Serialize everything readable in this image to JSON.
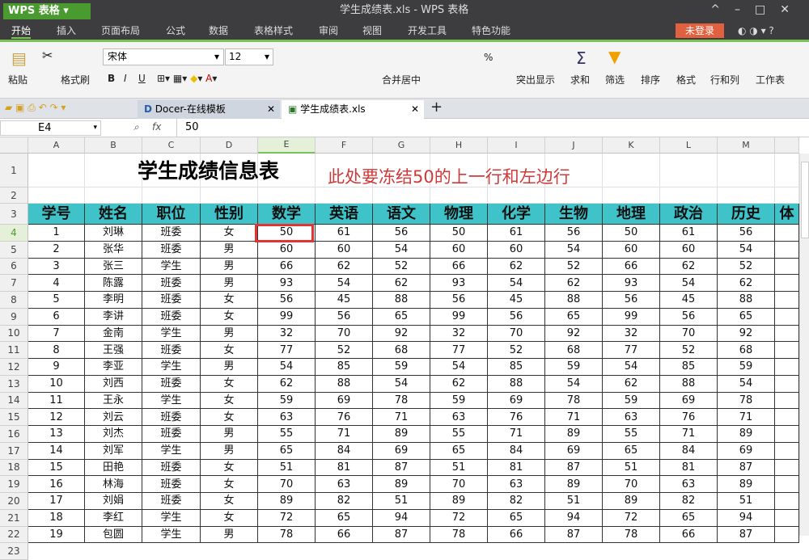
{
  "app": {
    "name": "WPS 表格",
    "window_title": "学生成绩表.xls - WPS 表格"
  },
  "menu": {
    "tabs": [
      "开始",
      "插入",
      "页面布局",
      "公式",
      "数据",
      "表格样式",
      "审阅",
      "视图",
      "开发工具",
      "特色功能"
    ],
    "active": "开始",
    "login": "未登录"
  },
  "ribbon": {
    "paste": "粘贴",
    "format_painter": "格式刷",
    "font": "宋体",
    "size": "12",
    "merge": "合并居中",
    "highlight": "突出显示",
    "sum": "求和",
    "filter": "筛选",
    "sort": "排序",
    "format": "格式",
    "rowcol": "行和列",
    "sheet": "工作表",
    "bold": "B",
    "italic": "I",
    "underline": "U",
    "percent": "%"
  },
  "doc_tabs": [
    {
      "label": "Docer-在线模板",
      "active": false
    },
    {
      "label": "学生成绩表.xls",
      "active": true
    }
  ],
  "formula_bar": {
    "cell_ref": "E4",
    "fx": "fx",
    "value": "50"
  },
  "columns": [
    "A",
    "B",
    "C",
    "D",
    "E",
    "F",
    "G",
    "H",
    "I",
    "J",
    "K",
    "L",
    "M",
    ""
  ],
  "selected_cell": "E4",
  "sheet": {
    "title": "学生成绩信息表",
    "note": "此处要冻结50的上一行和左边行",
    "headers": [
      "学号",
      "姓名",
      "职位",
      "性别",
      "数学",
      "英语",
      "语文",
      "物理",
      "化学",
      "生物",
      "地理",
      "政治",
      "历史",
      "体"
    ],
    "rows": [
      [
        "1",
        "刘琳",
        "班委",
        "女",
        "50",
        "61",
        "56",
        "50",
        "61",
        "56",
        "50",
        "61",
        "56"
      ],
      [
        "2",
        "张华",
        "班委",
        "男",
        "60",
        "60",
        "54",
        "60",
        "60",
        "54",
        "60",
        "60",
        "54"
      ],
      [
        "3",
        "张三",
        "学生",
        "男",
        "66",
        "62",
        "52",
        "66",
        "62",
        "52",
        "66",
        "62",
        "52"
      ],
      [
        "4",
        "陈露",
        "班委",
        "男",
        "93",
        "54",
        "62",
        "93",
        "54",
        "62",
        "93",
        "54",
        "62"
      ],
      [
        "5",
        "李明",
        "班委",
        "女",
        "56",
        "45",
        "88",
        "56",
        "45",
        "88",
        "56",
        "45",
        "88"
      ],
      [
        "6",
        "李讲",
        "班委",
        "女",
        "99",
        "56",
        "65",
        "99",
        "56",
        "65",
        "99",
        "56",
        "65"
      ],
      [
        "7",
        "金南",
        "学生",
        "男",
        "32",
        "70",
        "92",
        "32",
        "70",
        "92",
        "32",
        "70",
        "92"
      ],
      [
        "8",
        "王强",
        "班委",
        "女",
        "77",
        "52",
        "68",
        "77",
        "52",
        "68",
        "77",
        "52",
        "68"
      ],
      [
        "9",
        "李亚",
        "学生",
        "男",
        "54",
        "85",
        "59",
        "54",
        "85",
        "59",
        "54",
        "85",
        "59"
      ],
      [
        "10",
        "刘西",
        "班委",
        "女",
        "62",
        "88",
        "54",
        "62",
        "88",
        "54",
        "62",
        "88",
        "54"
      ],
      [
        "11",
        "王永",
        "学生",
        "女",
        "59",
        "69",
        "78",
        "59",
        "69",
        "78",
        "59",
        "69",
        "78"
      ],
      [
        "12",
        "刘云",
        "班委",
        "女",
        "63",
        "76",
        "71",
        "63",
        "76",
        "71",
        "63",
        "76",
        "71"
      ],
      [
        "13",
        "刘杰",
        "班委",
        "男",
        "55",
        "71",
        "89",
        "55",
        "71",
        "89",
        "55",
        "71",
        "89"
      ],
      [
        "14",
        "刘军",
        "学生",
        "男",
        "65",
        "84",
        "69",
        "65",
        "84",
        "69",
        "65",
        "84",
        "69"
      ],
      [
        "15",
        "田艳",
        "班委",
        "女",
        "51",
        "81",
        "87",
        "51",
        "81",
        "87",
        "51",
        "81",
        "87"
      ],
      [
        "16",
        "林海",
        "班委",
        "女",
        "70",
        "63",
        "89",
        "70",
        "63",
        "89",
        "70",
        "63",
        "89"
      ],
      [
        "17",
        "刘娟",
        "班委",
        "女",
        "89",
        "82",
        "51",
        "89",
        "82",
        "51",
        "89",
        "82",
        "51"
      ],
      [
        "18",
        "李红",
        "学生",
        "女",
        "72",
        "65",
        "94",
        "72",
        "65",
        "94",
        "72",
        "65",
        "94"
      ],
      [
        "19",
        "包圆",
        "学生",
        "男",
        "78",
        "66",
        "87",
        "78",
        "66",
        "87",
        "78",
        "66",
        "87"
      ]
    ]
  },
  "colors": {
    "header_fill": "#3fc3c9",
    "accent": "#7cc05a",
    "highlight_box": "#e53333",
    "note": "#d0393a"
  }
}
